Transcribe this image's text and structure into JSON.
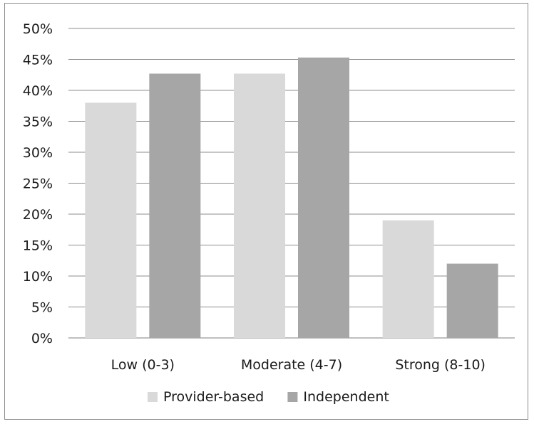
{
  "chart_data": {
    "type": "bar",
    "categories": [
      "Low (0-3)",
      "Moderate (4-7)",
      "Strong (8-10)"
    ],
    "series": [
      {
        "name": "Provider-based",
        "values": [
          38,
          42.7,
          19
        ],
        "color": "#d9d9d9"
      },
      {
        "name": "Independent",
        "values": [
          42.7,
          45.3,
          12
        ],
        "color": "#a6a6a6"
      }
    ],
    "ylim": [
      0,
      50
    ],
    "yticks": [
      0,
      5,
      10,
      15,
      20,
      25,
      30,
      35,
      40,
      45,
      50
    ],
    "ytick_labels": [
      "0%",
      "5%",
      "10%",
      "15%",
      "20%",
      "25%",
      "30%",
      "35%",
      "40%",
      "45%",
      "50%"
    ],
    "grid": true,
    "legend_position": "bottom",
    "title": "",
    "xlabel": "",
    "ylabel": ""
  }
}
